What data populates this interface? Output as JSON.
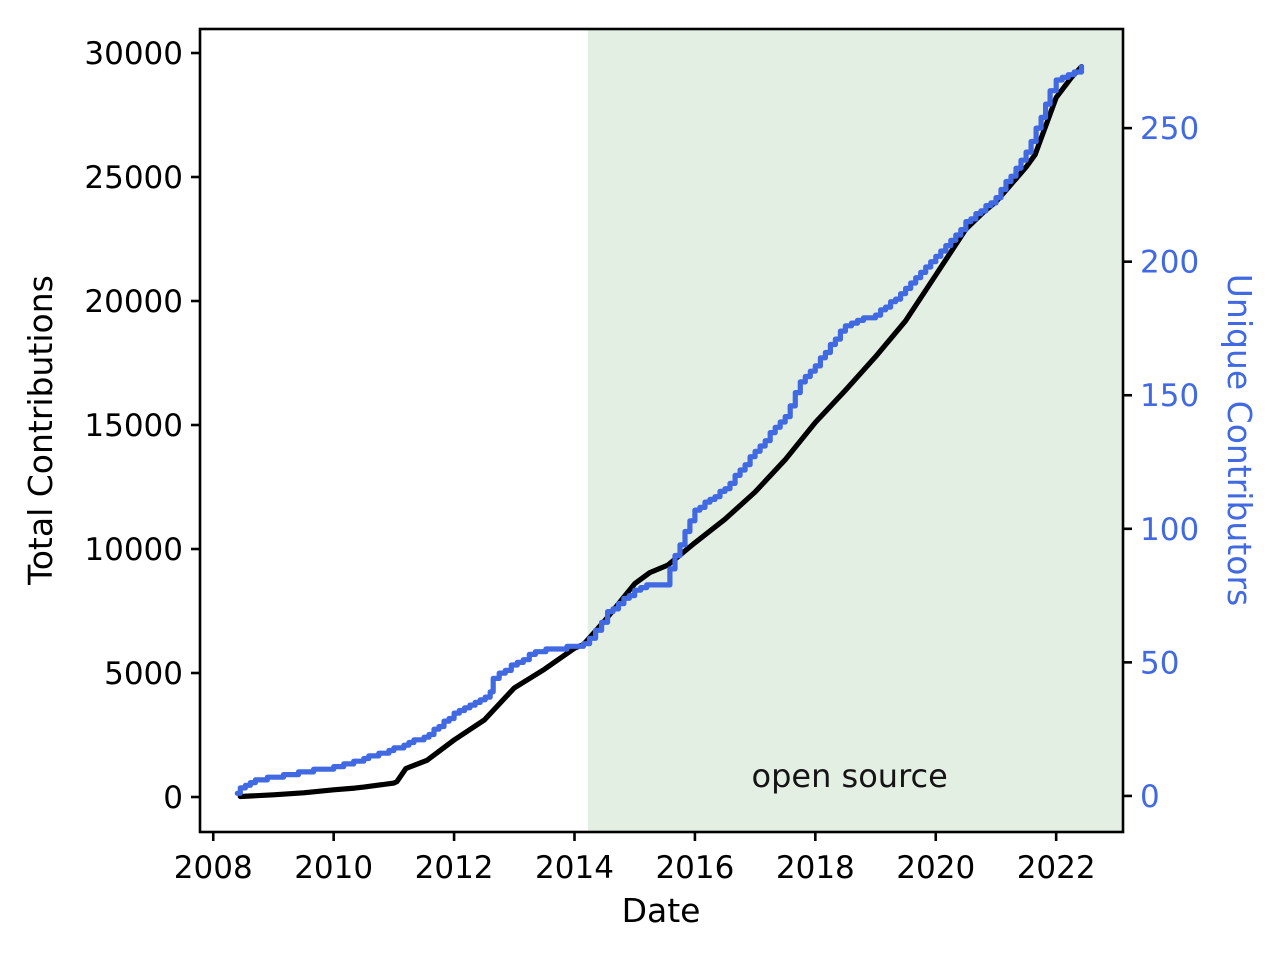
{
  "chart_data": {
    "type": "line",
    "title": "",
    "xlabel": "Date",
    "ylabel_left": "Total Contributions",
    "ylabel_right": "Unique Contributors",
    "x_ticks": [
      2008,
      2010,
      2012,
      2014,
      2016,
      2018,
      2020,
      2022
    ],
    "y_ticks_left": [
      0,
      5000,
      10000,
      15000,
      20000,
      25000,
      30000
    ],
    "y_ticks_right": [
      0,
      50,
      100,
      150,
      200,
      250
    ],
    "xlim": [
      2007.78,
      2023.11
    ],
    "ylim_left": [
      -1411,
      30968
    ],
    "ylim_right": [
      -13.5,
      287.1
    ],
    "grid": false,
    "legend": "none",
    "shaded_span": {
      "x_start": 2014.22,
      "x_end": 2023.11,
      "color": "#e4efe4",
      "label": "open source"
    },
    "annotation": {
      "text": "open source",
      "x": 2018.57,
      "y_left": 403
    },
    "colors": {
      "total_contributions": "#000000",
      "unique_contributors": "#4169e1",
      "right_axis_text": "#4169e1",
      "shade": "#e4efe4",
      "spine": "#000000"
    },
    "series": [
      {
        "name": "Total Contributions",
        "axis": "left",
        "color": "#000000",
        "style": "line",
        "points": [
          [
            2008.45,
            20
          ],
          [
            2009.0,
            90
          ],
          [
            2009.5,
            170
          ],
          [
            2010.0,
            290
          ],
          [
            2010.35,
            360
          ],
          [
            2010.5,
            400
          ],
          [
            2011.0,
            560
          ],
          [
            2011.05,
            620
          ],
          [
            2011.2,
            1150
          ],
          [
            2011.55,
            1480
          ],
          [
            2012.0,
            2300
          ],
          [
            2012.5,
            3100
          ],
          [
            2013.0,
            4400
          ],
          [
            2013.5,
            5150
          ],
          [
            2014.0,
            6000
          ],
          [
            2014.15,
            6150
          ],
          [
            2014.5,
            7100
          ],
          [
            2015.0,
            8600
          ],
          [
            2015.25,
            9050
          ],
          [
            2015.55,
            9350
          ],
          [
            2016.0,
            10250
          ],
          [
            2016.5,
            11200
          ],
          [
            2017.0,
            12300
          ],
          [
            2017.5,
            13600
          ],
          [
            2018.0,
            15100
          ],
          [
            2018.5,
            16400
          ],
          [
            2019.0,
            17750
          ],
          [
            2019.5,
            19200
          ],
          [
            2020.0,
            21050
          ],
          [
            2020.5,
            22900
          ],
          [
            2020.8,
            23600
          ],
          [
            2021.0,
            24000
          ],
          [
            2021.5,
            25400
          ],
          [
            2021.65,
            25900
          ],
          [
            2022.0,
            28200
          ],
          [
            2022.25,
            29000
          ],
          [
            2022.42,
            29450
          ]
        ]
      },
      {
        "name": "Unique Contributors",
        "axis": "right",
        "color": "#4169e1",
        "style": "step",
        "points": [
          [
            2008.4,
            1
          ],
          [
            2008.45,
            3
          ],
          [
            2008.7,
            5.5
          ],
          [
            2009.0,
            7
          ],
          [
            2009.5,
            9
          ],
          [
            2010.0,
            10.5
          ],
          [
            2010.5,
            14
          ],
          [
            2011.0,
            17.5
          ],
          [
            2011.5,
            22
          ],
          [
            2012.0,
            30.5
          ],
          [
            2012.35,
            35
          ],
          [
            2012.6,
            38.5
          ],
          [
            2012.65,
            44
          ],
          [
            2013.05,
            50
          ],
          [
            2013.35,
            54
          ],
          [
            2014.05,
            56
          ],
          [
            2014.25,
            58.5
          ],
          [
            2014.55,
            68.5
          ],
          [
            2015.0,
            77
          ],
          [
            2015.2,
            78.5
          ],
          [
            2015.5,
            79
          ],
          [
            2015.67,
            90
          ],
          [
            2016.0,
            107
          ],
          [
            2016.5,
            115
          ],
          [
            2017.0,
            129
          ],
          [
            2017.5,
            142
          ],
          [
            2017.75,
            155
          ],
          [
            2018.0,
            161
          ],
          [
            2018.5,
            176
          ],
          [
            2018.7,
            178
          ],
          [
            2019.0,
            180
          ],
          [
            2019.5,
            189.5
          ],
          [
            2020.0,
            202
          ],
          [
            2020.5,
            214.5
          ],
          [
            2021.0,
            224
          ],
          [
            2021.5,
            240.5
          ],
          [
            2021.75,
            254
          ],
          [
            2021.9,
            264
          ],
          [
            2022.0,
            268
          ],
          [
            2022.3,
            271
          ],
          [
            2022.42,
            273
          ]
        ]
      }
    ]
  }
}
